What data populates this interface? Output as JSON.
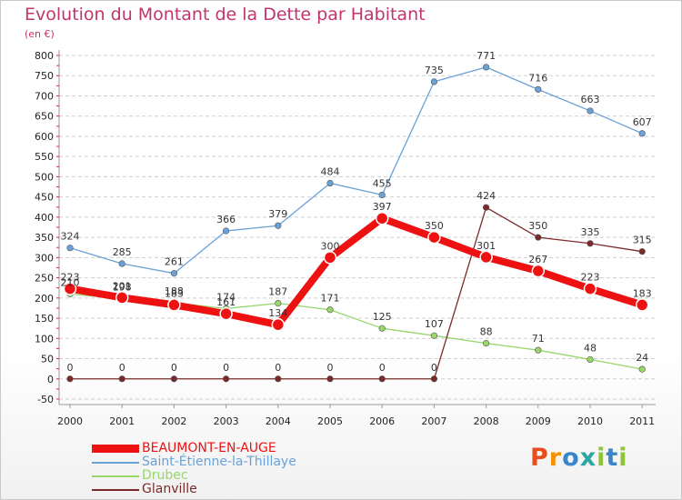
{
  "chart_data": {
    "type": "line",
    "title": "Evolution du Montant de la Dette par Habitant",
    "subtitle": "(en €)",
    "xlabel": "",
    "ylabel": "",
    "x": [
      "2000",
      "2001",
      "2002",
      "2003",
      "2004",
      "2005",
      "2006",
      "2007",
      "2008",
      "2009",
      "2010",
      "2011"
    ],
    "ylim": [
      -50,
      800
    ],
    "yticks": [
      -50,
      0,
      50,
      100,
      150,
      200,
      250,
      300,
      350,
      400,
      450,
      500,
      550,
      600,
      650,
      700,
      750,
      800
    ],
    "grid": "horizontal dashed",
    "legend_position": "bottom-left",
    "series": [
      {
        "name": "BEAUMONT-EN-AUGE",
        "color": "#ee1111",
        "values": [
          223,
          201,
          183,
          161,
          134,
          300,
          397,
          350,
          301,
          267,
          223,
          183
        ]
      },
      {
        "name": "Saint-Étienne-la-Thillaye",
        "color": "#6aa2d8",
        "values": [
          324,
          285,
          261,
          366,
          379,
          484,
          455,
          735,
          771,
          716,
          663,
          607
        ]
      },
      {
        "name": "Drubec",
        "color": "#99d66a",
        "values": [
          210,
          198,
          188,
          174,
          187,
          171,
          125,
          107,
          88,
          71,
          48,
          24
        ]
      },
      {
        "name": "Glanville",
        "color": "#7a2a2a",
        "values": [
          0,
          0,
          0,
          0,
          0,
          0,
          0,
          0,
          424,
          350,
          335,
          315
        ]
      }
    ]
  },
  "logo": {
    "text": "Proxiti",
    "colors": [
      "#e84e1b",
      "#f39200",
      "#3a86c8",
      "#2aa6a4",
      "#91c23c",
      "#3a86c8",
      "#91c23c"
    ]
  }
}
